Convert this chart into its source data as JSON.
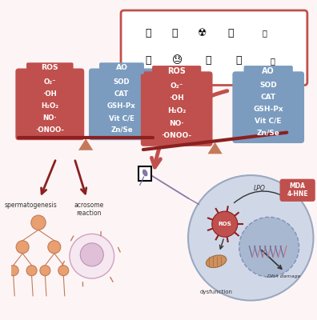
{
  "bg_color": "#fdf5f5",
  "ros_color": "#c0504d",
  "ros_dark": "#8b2020",
  "ao_color": "#7b9cbf",
  "ao_dark": "#2f4f8f",
  "red_box_border": "#c0504d",
  "scale_bar_color": "#8b2020",
  "scale_triangle_color": "#c47a5a",
  "arrow_color": "#8b2020",
  "cell_bg": "#d0d8e8",
  "cell_border": "#9aa8c0",
  "nucleus_color": "#a8b8d0",
  "mda_color": "#c0504d",
  "ros_items": [
    "O₂⁻",
    "·OH",
    "H₂O₂",
    "NO·",
    "·ONOO-"
  ],
  "ao_items": [
    "SOD",
    "CAT",
    "GSH-Px",
    "Vit C/E",
    "Zn/Se"
  ]
}
